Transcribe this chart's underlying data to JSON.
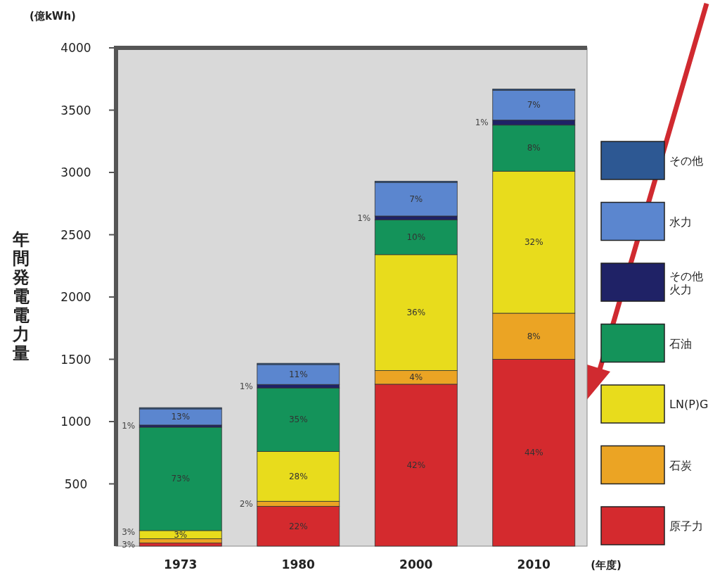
{
  "chart_data": {
    "type": "bar",
    "stacked": true,
    "ylabel": "年間発電電力量",
    "xlabel": "(年度)",
    "annotations": [
      "(億kWh)",
      "3%",
      "3%",
      "3%",
      "73%",
      "1%",
      "13%",
      "22%",
      "2%",
      "28%",
      "35%",
      "1%",
      "11%",
      "42%",
      "4%",
      "36%",
      "10%",
      "1%",
      "7%",
      "44%",
      "8%",
      "32%",
      "8%",
      "1%",
      "7%"
    ],
    "categories": [
      "1973",
      "1980",
      "2000",
      "2010"
    ],
    "ylim": [
      0,
      4000
    ],
    "yticks": [
      500,
      1000,
      1500,
      2000,
      2500,
      3000,
      3500,
      4000
    ],
    "legend": "right",
    "grid": false,
    "series": [
      {
        "name": "原子力",
        "color": "#d42a2e",
        "values": [
          25,
          320,
          1300,
          1500
        ]
      },
      {
        "name": "石炭",
        "color": "#eba424",
        "values": [
          35,
          40,
          110,
          370
        ]
      },
      {
        "name": "LN(P)G",
        "color": "#e8dc1c",
        "values": [
          65,
          400,
          930,
          1140
        ]
      },
      {
        "name": "石油",
        "color": "#14935a",
        "values": [
          830,
          510,
          280,
          370
        ]
      },
      {
        "name": "その他火力",
        "color": "#1f2266",
        "values": [
          17,
          28,
          30,
          40
        ]
      },
      {
        "name": "水力",
        "color": "#5b86cf",
        "values": [
          130,
          160,
          270,
          240
        ]
      },
      {
        "name": "その他",
        "color": "#2d5893",
        "values": [
          10,
          10,
          10,
          10
        ]
      }
    ]
  }
}
